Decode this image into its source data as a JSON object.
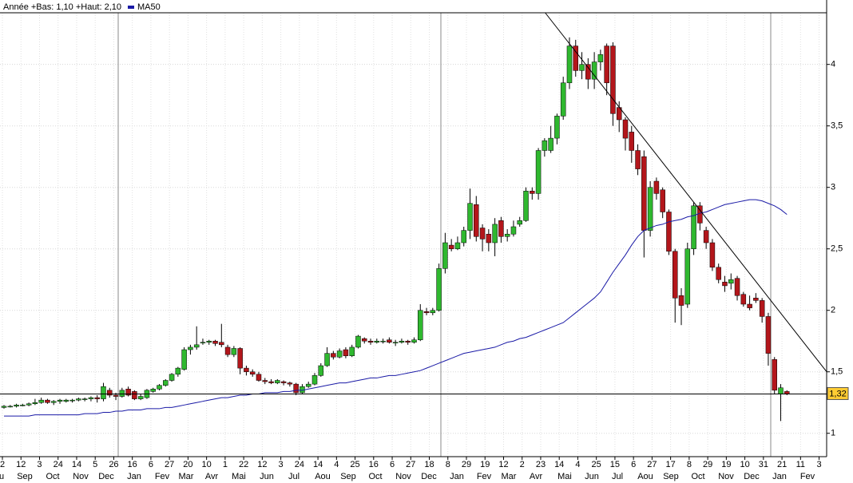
{
  "chart_data": {
    "type": "candlestick",
    "legend_text": "Année +Bas: 1,10 +Haut: 2,10",
    "up_color": "#2fb82f",
    "down_color": "#b3161b",
    "candles": [
      [
        1.21,
        1.23,
        1.2,
        1.22
      ],
      [
        1.22,
        1.23,
        1.21,
        1.22
      ],
      [
        1.22,
        1.24,
        1.21,
        1.23
      ],
      [
        1.23,
        1.24,
        1.22,
        1.23
      ],
      [
        1.23,
        1.25,
        1.22,
        1.24
      ],
      [
        1.24,
        1.28,
        1.23,
        1.25
      ],
      [
        1.25,
        1.29,
        1.24,
        1.27
      ],
      [
        1.27,
        1.28,
        1.24,
        1.25
      ],
      [
        1.25,
        1.27,
        1.23,
        1.26
      ],
      [
        1.26,
        1.28,
        1.24,
        1.27
      ],
      [
        1.26,
        1.28,
        1.25,
        1.27
      ],
      [
        1.27,
        1.28,
        1.25,
        1.27
      ],
      [
        1.27,
        1.29,
        1.26,
        1.28
      ],
      [
        1.28,
        1.29,
        1.26,
        1.28
      ],
      [
        1.28,
        1.3,
        1.26,
        1.29
      ],
      [
        1.29,
        1.31,
        1.25,
        1.28
      ],
      [
        1.28,
        1.41,
        1.26,
        1.38
      ],
      [
        1.35,
        1.37,
        1.29,
        1.31
      ],
      [
        1.31,
        1.33,
        1.27,
        1.3
      ],
      [
        1.3,
        1.37,
        1.29,
        1.35
      ],
      [
        1.36,
        1.38,
        1.3,
        1.31
      ],
      [
        1.34,
        1.35,
        1.27,
        1.28
      ],
      [
        1.28,
        1.32,
        1.27,
        1.3
      ],
      [
        1.29,
        1.36,
        1.28,
        1.35
      ],
      [
        1.34,
        1.37,
        1.33,
        1.36
      ],
      [
        1.36,
        1.4,
        1.35,
        1.39
      ],
      [
        1.39,
        1.44,
        1.38,
        1.43
      ],
      [
        1.43,
        1.49,
        1.42,
        1.48
      ],
      [
        1.48,
        1.54,
        1.46,
        1.53
      ],
      [
        1.52,
        1.7,
        1.51,
        1.68
      ],
      [
        1.68,
        1.72,
        1.64,
        1.7
      ],
      [
        1.7,
        1.87,
        1.68,
        1.72
      ],
      [
        1.74,
        1.77,
        1.72,
        1.74
      ],
      [
        1.74,
        1.76,
        1.72,
        1.75
      ],
      [
        1.75,
        1.76,
        1.71,
        1.73
      ],
      [
        1.74,
        1.89,
        1.7,
        1.72
      ],
      [
        1.7,
        1.72,
        1.62,
        1.64
      ],
      [
        1.64,
        1.71,
        1.62,
        1.69
      ],
      [
        1.69,
        1.7,
        1.48,
        1.53
      ],
      [
        1.53,
        1.55,
        1.47,
        1.5
      ],
      [
        1.5,
        1.52,
        1.46,
        1.48
      ],
      [
        1.48,
        1.5,
        1.42,
        1.43
      ],
      [
        1.43,
        1.45,
        1.4,
        1.42
      ],
      [
        1.42,
        1.44,
        1.4,
        1.41
      ],
      [
        1.41,
        1.44,
        1.4,
        1.43
      ],
      [
        1.42,
        1.43,
        1.39,
        1.41
      ],
      [
        1.41,
        1.42,
        1.38,
        1.4
      ],
      [
        1.4,
        1.41,
        1.31,
        1.33
      ],
      [
        1.33,
        1.4,
        1.32,
        1.38
      ],
      [
        1.38,
        1.42,
        1.37,
        1.4
      ],
      [
        1.4,
        1.49,
        1.39,
        1.47
      ],
      [
        1.47,
        1.57,
        1.46,
        1.55
      ],
      [
        1.55,
        1.7,
        1.54,
        1.65
      ],
      [
        1.65,
        1.67,
        1.6,
        1.62
      ],
      [
        1.62,
        1.69,
        1.61,
        1.67
      ],
      [
        1.68,
        1.7,
        1.61,
        1.63
      ],
      [
        1.63,
        1.72,
        1.62,
        1.7
      ],
      [
        1.7,
        1.8,
        1.69,
        1.79
      ],
      [
        1.77,
        1.78,
        1.73,
        1.75
      ],
      [
        1.75,
        1.77,
        1.72,
        1.74
      ],
      [
        1.74,
        1.77,
        1.73,
        1.75
      ],
      [
        1.75,
        1.77,
        1.73,
        1.75
      ],
      [
        1.76,
        1.78,
        1.73,
        1.74
      ],
      [
        1.74,
        1.76,
        1.71,
        1.74
      ],
      [
        1.74,
        1.77,
        1.73,
        1.75
      ],
      [
        1.75,
        1.76,
        1.72,
        1.74
      ],
      [
        1.74,
        1.78,
        1.73,
        1.76
      ],
      [
        1.76,
        2.05,
        1.75,
        2.0
      ],
      [
        1.99,
        2.02,
        1.96,
        1.98
      ],
      [
        1.98,
        2.02,
        1.96,
        2.0
      ],
      [
        2.0,
        2.38,
        1.99,
        2.34
      ],
      [
        2.34,
        2.63,
        2.3,
        2.55
      ],
      [
        2.53,
        2.58,
        2.48,
        2.5
      ],
      [
        2.5,
        2.6,
        2.49,
        2.55
      ],
      [
        2.55,
        2.68,
        2.52,
        2.65
      ],
      [
        2.65,
        2.99,
        2.58,
        2.87
      ],
      [
        2.86,
        2.93,
        2.56,
        2.6
      ],
      [
        2.67,
        2.7,
        2.48,
        2.58
      ],
      [
        2.62,
        2.66,
        2.48,
        2.55
      ],
      [
        2.55,
        2.75,
        2.44,
        2.7
      ],
      [
        2.73,
        2.76,
        2.55,
        2.6
      ],
      [
        2.6,
        2.66,
        2.56,
        2.62
      ],
      [
        2.62,
        2.73,
        2.6,
        2.68
      ],
      [
        2.7,
        2.76,
        2.68,
        2.73
      ],
      [
        2.73,
        3.0,
        2.72,
        2.97
      ],
      [
        2.97,
        3.0,
        2.9,
        2.95
      ],
      [
        2.95,
        3.32,
        2.9,
        3.3
      ],
      [
        3.3,
        3.4,
        3.25,
        3.38
      ],
      [
        3.3,
        3.5,
        3.28,
        3.4
      ],
      [
        3.4,
        3.6,
        3.35,
        3.58
      ],
      [
        3.58,
        3.9,
        3.55,
        3.85
      ],
      [
        3.85,
        4.22,
        3.8,
        4.15
      ],
      [
        4.15,
        4.2,
        3.9,
        3.95
      ],
      [
        3.95,
        4.1,
        3.88,
        4.0
      ],
      [
        4.0,
        4.05,
        3.8,
        3.88
      ],
      [
        3.88,
        4.1,
        3.8,
        4.02
      ],
      [
        4.02,
        4.12,
        3.95,
        4.08
      ],
      [
        4.15,
        4.17,
        3.75,
        3.85
      ],
      [
        4.15,
        4.18,
        3.5,
        3.6
      ],
      [
        3.65,
        3.7,
        3.45,
        3.55
      ],
      [
        3.55,
        3.57,
        3.3,
        3.4
      ],
      [
        3.45,
        3.5,
        3.2,
        3.3
      ],
      [
        3.3,
        3.35,
        3.1,
        3.15
      ],
      [
        3.25,
        3.3,
        2.43,
        2.65
      ],
      [
        2.65,
        3.05,
        2.6,
        3.0
      ],
      [
        3.05,
        3.08,
        2.9,
        2.95
      ],
      [
        2.98,
        3.0,
        2.75,
        2.8
      ],
      [
        2.8,
        2.82,
        2.45,
        2.48
      ],
      [
        2.48,
        2.5,
        1.9,
        2.1
      ],
      [
        2.12,
        2.18,
        1.88,
        2.04
      ],
      [
        2.05,
        2.55,
        2.02,
        2.5
      ],
      [
        2.5,
        2.88,
        2.45,
        2.85
      ],
      [
        2.85,
        2.88,
        2.65,
        2.71
      ],
      [
        2.65,
        2.68,
        2.5,
        2.55
      ],
      [
        2.55,
        2.58,
        2.32,
        2.35
      ],
      [
        2.35,
        2.38,
        2.22,
        2.25
      ],
      [
        2.23,
        2.28,
        2.15,
        2.2
      ],
      [
        2.22,
        2.3,
        2.17,
        2.25
      ],
      [
        2.26,
        2.28,
        2.08,
        2.12
      ],
      [
        2.13,
        2.15,
        2.03,
        2.05
      ],
      [
        2.05,
        2.12,
        2.0,
        2.02
      ],
      [
        2.1,
        2.14,
        2.06,
        2.08
      ],
      [
        2.08,
        2.1,
        1.9,
        1.95
      ],
      [
        1.95,
        1.98,
        1.55,
        1.65
      ],
      [
        1.6,
        1.62,
        1.32,
        1.35
      ],
      [
        1.32,
        1.4,
        1.1,
        1.37
      ],
      [
        1.34,
        1.35,
        1.31,
        1.32
      ]
    ],
    "series": [
      {
        "name": "MA50",
        "color": "#1a1aa6",
        "values": [
          1.14,
          1.14,
          1.14,
          1.14,
          1.14,
          1.15,
          1.15,
          1.15,
          1.15,
          1.15,
          1.15,
          1.15,
          1.15,
          1.16,
          1.16,
          1.16,
          1.17,
          1.17,
          1.18,
          1.18,
          1.19,
          1.19,
          1.19,
          1.2,
          1.2,
          1.2,
          1.21,
          1.21,
          1.22,
          1.23,
          1.24,
          1.25,
          1.26,
          1.27,
          1.28,
          1.29,
          1.29,
          1.3,
          1.31,
          1.31,
          1.32,
          1.32,
          1.33,
          1.33,
          1.33,
          1.34,
          1.34,
          1.35,
          1.35,
          1.36,
          1.37,
          1.38,
          1.39,
          1.4,
          1.41,
          1.41,
          1.42,
          1.43,
          1.44,
          1.45,
          1.45,
          1.46,
          1.47,
          1.47,
          1.48,
          1.49,
          1.5,
          1.51,
          1.53,
          1.55,
          1.57,
          1.59,
          1.61,
          1.63,
          1.65,
          1.66,
          1.67,
          1.68,
          1.69,
          1.7,
          1.72,
          1.74,
          1.75,
          1.77,
          1.78,
          1.8,
          1.82,
          1.84,
          1.86,
          1.88,
          1.9,
          1.94,
          1.98,
          2.02,
          2.06,
          2.1,
          2.15,
          2.23,
          2.31,
          2.38,
          2.45,
          2.53,
          2.6,
          2.65,
          2.67,
          2.69,
          2.7,
          2.72,
          2.73,
          2.74,
          2.76,
          2.77,
          2.79,
          2.8,
          2.82,
          2.84,
          2.86,
          2.87,
          2.88,
          2.89,
          2.9,
          2.9,
          2.89,
          2.87,
          2.85,
          2.82,
          2.78
        ]
      }
    ],
    "ylim": [
      0.81,
      4.42
    ],
    "yticks": [
      1,
      {
        "value": 1.5,
        "label": "1,5"
      },
      2,
      {
        "value": 2.5,
        "label": "2,5"
      },
      3,
      {
        "value": 3.5,
        "label": "3,5"
      },
      4
    ],
    "x_labels": {
      "days": [
        "2",
        "12",
        "3",
        "24",
        "14",
        "5",
        "26",
        "16",
        "6",
        "27",
        "20",
        "10",
        "1",
        "22",
        "12",
        "3",
        "24",
        "14",
        "4",
        "25",
        "16",
        "6",
        "27",
        "18",
        "8",
        "29",
        "19",
        "12",
        "2",
        "23",
        "14",
        "4",
        "25",
        "15",
        "6",
        "27",
        "17",
        "8",
        "29",
        "19",
        "10",
        "31",
        "21",
        "11",
        "3"
      ],
      "months": [
        "u",
        "Sep",
        "Oct",
        "Nov",
        "Dec",
        "Jan",
        "Fev",
        "Mar",
        "Avr",
        "Mai",
        "Jun",
        "Jul",
        "Aou",
        "Sep",
        "Oct",
        "Nov",
        "Dec",
        "Jan",
        "Fev",
        "Mar",
        "Avr",
        "Mai",
        "Jun",
        "Jul",
        "Aou",
        "Sep",
        "Oct",
        "Nov",
        "Dec",
        "Jan",
        "Fev"
      ]
    },
    "last_price": {
      "value": 1.32,
      "label": "1,32"
    },
    "trendline": {
      "x": [
        87.1,
        132.4
      ],
      "y": [
        4.42,
        1.5
      ]
    },
    "grid": true
  }
}
